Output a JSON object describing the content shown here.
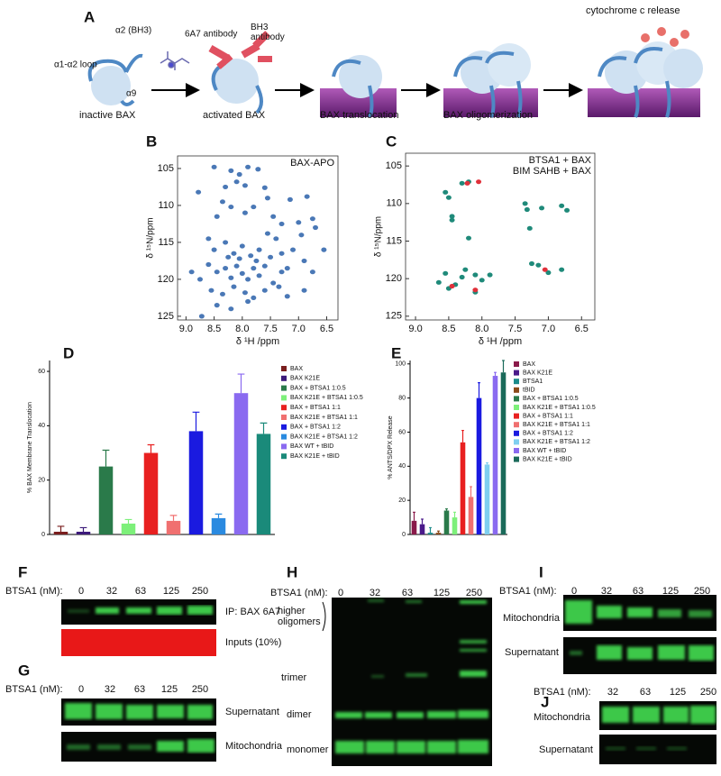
{
  "panel_A": {
    "label": "A",
    "loop": "α1-α2 loop",
    "bh3_helix": "α2 (BH3)",
    "helix9": "α9",
    "inactive": "inactive BAX",
    "ab_6a7": "6A7 antibody",
    "ab_bh3": "BH3 antibody",
    "activated": "activated BAX",
    "translocation": "BAX translocation",
    "oligomerization": "BAX oligomerization",
    "release": "cytochrome c release"
  },
  "chart_data": [
    {
      "type": "scatter",
      "panel": "B",
      "xlabel": "δ ¹H /ppm",
      "ylabel": "δ ¹⁵N/ppm",
      "xlim": [
        9.15,
        6.3
      ],
      "ylim": [
        125.5,
        103.3
      ],
      "xticks": [
        {
          "value": 9,
          "label": "9.0"
        },
        8.5,
        {
          "value": 8,
          "label": "8.0"
        },
        7.5,
        {
          "value": 7,
          "label": "7.0"
        },
        6.5
      ],
      "yticks": [
        105,
        110,
        115,
        120,
        125
      ],
      "series": [
        {
          "name": "BAX-APO",
          "color": "#4a78b6",
          "x": [
            8.78,
            8.5,
            8.2,
            8.05,
            7.9,
            7.72,
            8.3,
            8.1,
            7.95,
            7.6,
            7.55,
            8.35,
            8.2,
            8.45,
            7.95,
            7.8,
            6.85,
            7.15,
            7.45,
            7.3,
            7.0,
            6.75,
            6.7,
            6.95,
            7.4,
            7.55,
            8.6,
            8.5,
            8.3,
            8.15,
            8.0,
            7.85,
            7.7,
            7.5,
            7.3,
            7.1,
            6.9,
            8.9,
            8.75,
            8.6,
            8.45,
            8.3,
            8.2,
            8.1,
            8.0,
            7.9,
            7.8,
            7.7,
            7.6,
            7.45,
            7.3,
            7.2,
            8.55,
            8.35,
            8.15,
            7.95,
            7.8,
            7.6,
            8.45,
            8.2,
            7.9,
            8.72,
            7.2,
            6.9,
            6.75,
            6.55,
            7.35,
            8.05,
            7.75,
            8.25
          ],
          "values": [
            108.2,
            104.8,
            105.3,
            105.8,
            104.8,
            105.1,
            107.5,
            106.8,
            107.3,
            107.6,
            109,
            109.5,
            110.2,
            111.5,
            111,
            110.2,
            108.8,
            109.2,
            111.5,
            112.5,
            112.3,
            111.8,
            113,
            114,
            114.5,
            113.8,
            114.5,
            116,
            115,
            116.5,
            115.5,
            116.8,
            116,
            117,
            116.5,
            116,
            117.5,
            119,
            120,
            118,
            119,
            118.5,
            119.8,
            118.2,
            119.2,
            120,
            118.5,
            119.5,
            118.2,
            120.5,
            119,
            118.5,
            121.5,
            122,
            121,
            121.8,
            122.5,
            121.5,
            123.5,
            124,
            123,
            125,
            122.3,
            121.5,
            119,
            116,
            121,
            117.2,
            117.5,
            117
          ]
        }
      ]
    },
    {
      "type": "scatter",
      "panel": "C",
      "xlabel": "δ ¹H /ppm",
      "ylabel": "δ ¹⁵N/ppm",
      "xlim": [
        9.15,
        6.3
      ],
      "ylim": [
        125.5,
        103.3
      ],
      "xticks": [
        {
          "value": 9,
          "label": "9.0"
        },
        8.5,
        {
          "value": 8,
          "label": "8.0"
        },
        7.5,
        {
          "value": 7,
          "label": "7.0"
        },
        6.5
      ],
      "yticks": [
        105,
        110,
        115,
        120,
        125
      ],
      "series": [
        {
          "name": "BTSA1 + BAX",
          "color": "#1f8a7a",
          "x": [
            8.55,
            8.5,
            8.3,
            8.2,
            8.45,
            8.45,
            8.2,
            7.35,
            7.32,
            7.1,
            6.8,
            6.72,
            7.28,
            8.55,
            8.3,
            8.25,
            8.0,
            8.1,
            8.4,
            8.5,
            7.25,
            7.15,
            7.0,
            6.8,
            8.1,
            7.88,
            8.65
          ],
          "values": [
            108.5,
            109.2,
            107.3,
            107.1,
            111.7,
            112.2,
            114.6,
            110,
            110.8,
            110.6,
            110.3,
            110.9,
            113.3,
            119.3,
            119.8,
            118.8,
            120.2,
            119.5,
            120.8,
            121.3,
            118,
            118.2,
            119.2,
            118.8,
            121.8,
            119.5,
            120.5
          ]
        },
        {
          "name": "BIM SAHB + BAX",
          "color": "#e0303a",
          "x": [
            8.05,
            8.45,
            7.05,
            8.1,
            8.22
          ],
          "values": [
            107.1,
            121,
            118.8,
            121.5,
            107.3
          ]
        }
      ]
    },
    {
      "type": "bar",
      "panel": "D",
      "ylabel": "% BAX Membrane Translocation",
      "ylim": [
        0,
        64
      ],
      "yticks": [
        0,
        20,
        40,
        60
      ],
      "categories": [
        "BAX",
        "BAX K21E",
        "BAX + BTSA1 1:0.5",
        "BAX K21E + BTSA1 1:0.5",
        "BAX + BTSA1 1:1",
        "BAX K21E + BTSA1 1:1",
        "BAX + BTSA1 1:2",
        "BAX K21E + BTSA1 1:2",
        "BAX WT + tBID",
        "BAX K21E + tBID"
      ],
      "values": [
        1,
        1,
        25,
        4,
        30,
        5,
        38,
        6,
        52,
        37
      ],
      "errors": [
        2,
        1.5,
        6,
        1.5,
        3,
        2,
        7,
        1.5,
        7,
        4
      ],
      "colors": [
        "#7a1e1e",
        "#3c1a7a",
        "#2a7a4a",
        "#7df07a",
        "#e82020",
        "#f07070",
        "#1a1ae0",
        "#2a8ae0",
        "#8a6af0",
        "#1a8a7a"
      ]
    },
    {
      "type": "bar",
      "panel": "E",
      "ylabel": "% ANTS/DPX Release",
      "ylim": [
        0,
        102
      ],
      "yticks": [
        0,
        20,
        40,
        60,
        80,
        100
      ],
      "categories": [
        "BAX",
        "BAX K21E",
        "BTSA1",
        "tBID",
        "BAX + BTSA1 1:0.5",
        "BAX K21E + BTSA1 1:0.5",
        "BAX + BTSA1 1:1",
        "BAX K21E + BTSA1 1:1",
        "BAX + BTSA1 1:2",
        "BAX K21E + BTSA1 1:2",
        "BAX WT + tBID",
        "BAX K21E + tBID"
      ],
      "values": [
        8,
        6,
        1,
        1,
        14,
        10,
        54,
        22,
        80,
        41,
        93,
        95
      ],
      "errors": [
        5,
        3,
        3,
        1,
        1,
        3,
        7,
        6,
        9,
        1,
        2,
        7
      ],
      "colors": [
        "#8a1a4a",
        "#4a1a8a",
        "#1a8a8a",
        "#8a4a1a",
        "#2a7a4a",
        "#7df07a",
        "#e82020",
        "#f07070",
        "#1a1ae0",
        "#7fcff0",
        "#8a6af0",
        "#1a6a5a"
      ]
    }
  ],
  "panel_F": {
    "label": "F",
    "conc_label": "BTSA1 (nM):",
    "concentrations": [
      0,
      32,
      63,
      125,
      250
    ],
    "rows": [
      "IP: BAX 6A7",
      "Inputs (10%)"
    ]
  },
  "panel_G": {
    "label": "G",
    "conc_label": "BTSA1 (nM):",
    "concentrations": [
      0,
      32,
      63,
      125,
      250
    ],
    "rows": [
      "Supernatant",
      "Mitochondria"
    ]
  },
  "panel_H": {
    "label": "H",
    "conc_label": "BTSA1 (nM):",
    "concentrations": [
      0,
      32,
      63,
      125,
      250
    ],
    "bands": [
      "higher oligomers",
      "trimer",
      "dimer",
      "monomer"
    ]
  },
  "panel_I": {
    "label": "I",
    "conc_label": "BTSA1 (nM):",
    "concentrations": [
      0,
      32,
      63,
      125,
      250
    ],
    "rows": [
      "Mitochondria",
      "Supernatant"
    ]
  },
  "panel_J": {
    "label": "J",
    "conc_label": "BTSA1 (nM):",
    "concentrations": [
      32,
      63,
      125,
      250
    ],
    "rows": [
      "Mitochondria",
      "Supernatant"
    ]
  }
}
